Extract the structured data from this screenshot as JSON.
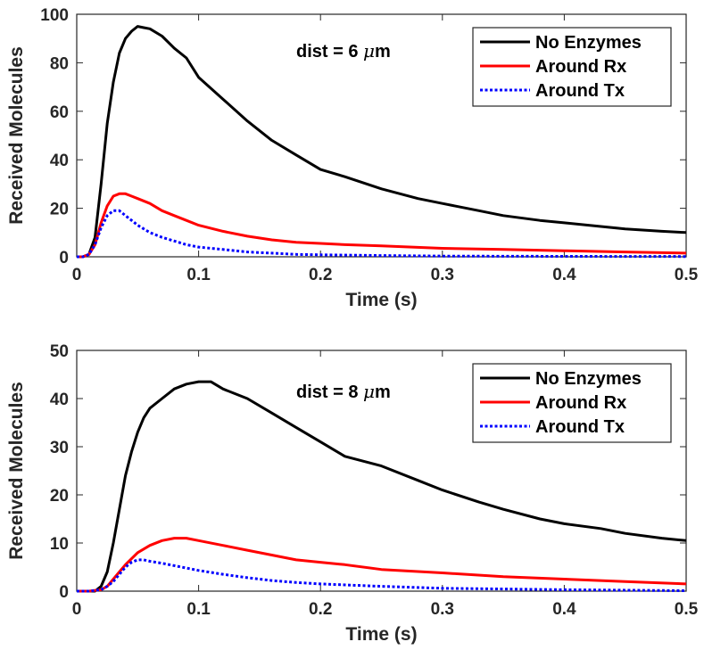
{
  "chart_data": [
    {
      "type": "line",
      "title": "",
      "annotation": {
        "prefix": "dist = 6 ",
        "mu": "μ",
        "unit": "m"
      },
      "xlabel": "Time (s)",
      "ylabel": "Received Molecules",
      "xlim": [
        0,
        0.5
      ],
      "ylim": [
        0,
        100
      ],
      "xticks": [
        0,
        0.1,
        0.2,
        0.3,
        0.4,
        0.5
      ],
      "xtick_labels": [
        "0",
        "0.1",
        "0.2",
        "0.3",
        "0.4",
        "0.5"
      ],
      "yticks": [
        0,
        20,
        40,
        60,
        80,
        100
      ],
      "ytick_labels": [
        "0",
        "20",
        "40",
        "60",
        "80",
        "100"
      ],
      "legend_position": "top-right",
      "series": [
        {
          "name": "No Enzymes",
          "color": "#000000",
          "style": "solid",
          "x": [
            0,
            0.005,
            0.01,
            0.015,
            0.02,
            0.025,
            0.03,
            0.035,
            0.04,
            0.045,
            0.05,
            0.055,
            0.06,
            0.07,
            0.08,
            0.09,
            0.1,
            0.12,
            0.14,
            0.16,
            0.18,
            0.2,
            0.22,
            0.25,
            0.28,
            0.3,
            0.33,
            0.35,
            0.38,
            0.4,
            0.43,
            0.45,
            0.48,
            0.5
          ],
          "y": [
            0,
            0,
            1,
            8,
            30,
            55,
            72,
            84,
            90,
            93,
            95,
            94.5,
            94,
            91,
            86,
            82,
            74,
            65,
            56,
            48,
            42,
            36,
            33,
            28,
            24,
            22,
            19,
            17,
            15,
            14,
            12.5,
            11.5,
            10.5,
            10
          ]
        },
        {
          "name": "Around Rx",
          "color": "#ff0000",
          "style": "solid",
          "x": [
            0,
            0.005,
            0.01,
            0.015,
            0.02,
            0.025,
            0.03,
            0.035,
            0.04,
            0.045,
            0.05,
            0.06,
            0.07,
            0.08,
            0.09,
            0.1,
            0.12,
            0.14,
            0.16,
            0.18,
            0.2,
            0.22,
            0.25,
            0.3,
            0.35,
            0.4,
            0.45,
            0.5
          ],
          "y": [
            0,
            0,
            1,
            5,
            14,
            21,
            25,
            26,
            26,
            25,
            24,
            22,
            19,
            17,
            15,
            13,
            10.5,
            8.5,
            7,
            6,
            5.5,
            5,
            4.5,
            3.5,
            3,
            2.5,
            2,
            1.5
          ]
        },
        {
          "name": "Around Tx",
          "color": "#0000ff",
          "style": "dotted",
          "x": [
            0,
            0.005,
            0.01,
            0.015,
            0.02,
            0.025,
            0.03,
            0.035,
            0.04,
            0.045,
            0.05,
            0.06,
            0.07,
            0.08,
            0.09,
            0.1,
            0.12,
            0.14,
            0.16,
            0.18,
            0.2,
            0.25,
            0.3,
            0.4,
            0.5
          ],
          "y": [
            0,
            0,
            1,
            5,
            12,
            17,
            19,
            19,
            17,
            15,
            13,
            10,
            8,
            6.5,
            5,
            4,
            3,
            2,
            1.5,
            1,
            0.8,
            0.5,
            0.3,
            0.2,
            0.1
          ]
        }
      ]
    },
    {
      "type": "line",
      "title": "",
      "annotation": {
        "prefix": "dist = 8 ",
        "mu": "μ",
        "unit": "m"
      },
      "xlabel": "Time (s)",
      "ylabel": "Received Molecules",
      "xlim": [
        0,
        0.5
      ],
      "ylim": [
        0,
        50
      ],
      "xticks": [
        0,
        0.1,
        0.2,
        0.3,
        0.4,
        0.5
      ],
      "xtick_labels": [
        "0",
        "0.1",
        "0.2",
        "0.3",
        "0.4",
        "0.5"
      ],
      "yticks": [
        0,
        10,
        20,
        30,
        40,
        50
      ],
      "ytick_labels": [
        "0",
        "10",
        "20",
        "30",
        "40",
        "50"
      ],
      "legend_position": "top-right",
      "series": [
        {
          "name": "No Enzymes",
          "color": "#000000",
          "style": "solid",
          "x": [
            0,
            0.01,
            0.015,
            0.02,
            0.025,
            0.03,
            0.035,
            0.04,
            0.045,
            0.05,
            0.055,
            0.06,
            0.07,
            0.08,
            0.09,
            0.1,
            0.11,
            0.12,
            0.13,
            0.14,
            0.16,
            0.18,
            0.2,
            0.22,
            0.25,
            0.28,
            0.3,
            0.33,
            0.35,
            0.38,
            0.4,
            0.43,
            0.45,
            0.48,
            0.5
          ],
          "y": [
            0,
            0,
            0,
            1,
            4,
            10,
            17,
            24,
            29,
            33,
            36,
            38,
            40,
            42,
            43,
            43.5,
            43.5,
            42,
            41,
            40,
            37,
            34,
            31,
            28,
            26,
            23,
            21,
            18.5,
            17,
            15,
            14,
            13,
            12,
            11,
            10.5
          ]
        },
        {
          "name": "Around Rx",
          "color": "#ff0000",
          "style": "solid",
          "x": [
            0,
            0.01,
            0.02,
            0.025,
            0.03,
            0.035,
            0.04,
            0.05,
            0.06,
            0.07,
            0.08,
            0.09,
            0.1,
            0.12,
            0.14,
            0.16,
            0.18,
            0.2,
            0.22,
            0.25,
            0.3,
            0.35,
            0.4,
            0.45,
            0.5
          ],
          "y": [
            0,
            0,
            0.3,
            1,
            2.5,
            4,
            5.5,
            8,
            9.5,
            10.5,
            11,
            11,
            10.5,
            9.5,
            8.5,
            7.5,
            6.5,
            6,
            5.5,
            4.5,
            3.8,
            3,
            2.5,
            2,
            1.5
          ]
        },
        {
          "name": "Around Tx",
          "color": "#0000ff",
          "style": "dotted",
          "x": [
            0,
            0.01,
            0.02,
            0.025,
            0.03,
            0.035,
            0.04,
            0.045,
            0.05,
            0.055,
            0.06,
            0.07,
            0.08,
            0.09,
            0.1,
            0.12,
            0.14,
            0.16,
            0.18,
            0.2,
            0.25,
            0.3,
            0.4,
            0.5
          ],
          "y": [
            0,
            0,
            0.3,
            1,
            2,
            3.5,
            5,
            6,
            6.5,
            6.5,
            6.2,
            5.8,
            5.3,
            4.8,
            4.3,
            3.5,
            2.8,
            2.2,
            1.8,
            1.5,
            1,
            0.6,
            0.3,
            0.1
          ]
        }
      ]
    }
  ]
}
